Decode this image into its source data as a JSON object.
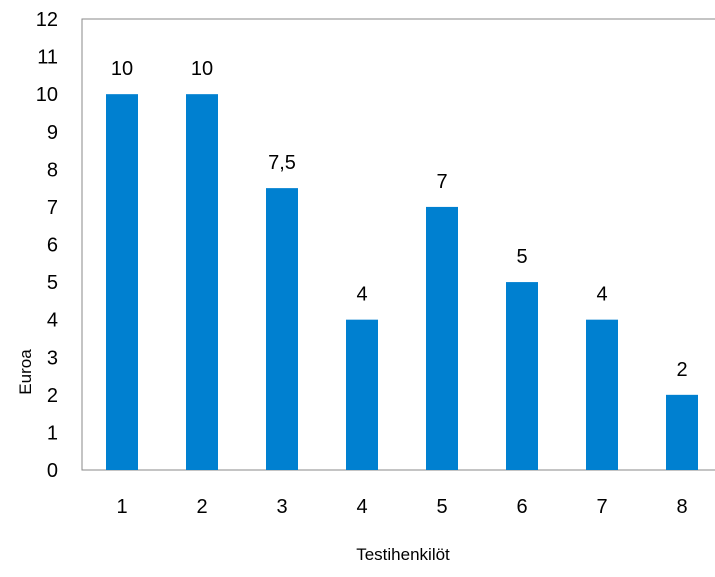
{
  "chart_data": {
    "type": "bar",
    "categories": [
      "1",
      "2",
      "3",
      "4",
      "5",
      "6",
      "7",
      "8"
    ],
    "values": [
      10,
      10,
      7.5,
      4,
      7,
      5,
      4,
      2
    ],
    "data_labels": [
      "10",
      "10",
      "7,5",
      "4",
      "7",
      "5",
      "4",
      "2"
    ],
    "y_ticks": [
      "0",
      "1",
      "2",
      "3",
      "4",
      "5",
      "6",
      "7",
      "8",
      "9",
      "10",
      "11",
      "12"
    ],
    "xlabel": "Testihenkilöt",
    "ylabel": "Euroa",
    "ylim": [
      0,
      12
    ],
    "grid": false,
    "legend": "none",
    "bar_color": "#0080d0"
  }
}
